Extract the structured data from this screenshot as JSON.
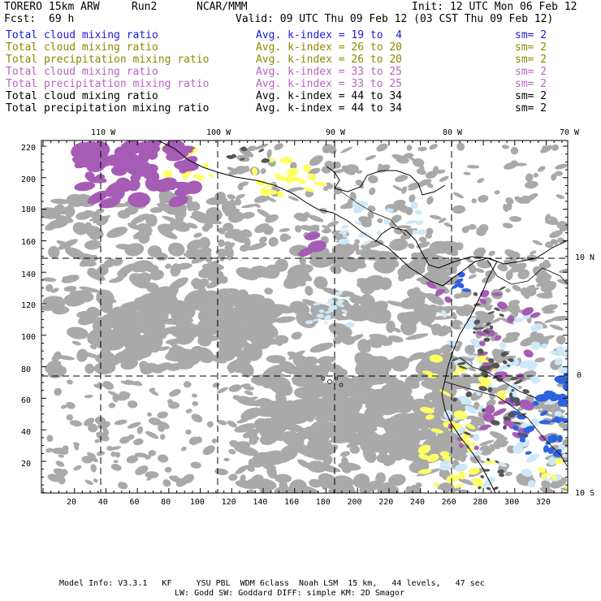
{
  "header": {
    "model": "TORERO",
    "resolution": "15km ARW",
    "run": "Run2",
    "org": "NCAR/MMM",
    "init": "Init: 12 UTC Mon 06 Feb 12",
    "fcst_label": "Fcst:",
    "fcst_value": "69 h",
    "valid": "Valid: 09 UTC Thu 09 Feb 12 (03 CST Thu 09 Feb 12)"
  },
  "legend": [
    {
      "field": "Total cloud mixing ratio",
      "kindex": "Avg. k-index = 19 to  4",
      "sm": "sm= 2",
      "color": "#1a1ad6"
    },
    {
      "field": "Total cloud mixing ratio",
      "kindex": "Avg. k-index = 26 to 20",
      "sm": "sm= 2",
      "color": "#8a8a00"
    },
    {
      "field": "Total precipitation mixing ratio",
      "kindex": "Avg. k-index = 26 to 20",
      "sm": "sm= 2",
      "color": "#8a8a00"
    },
    {
      "field": "Total cloud mixing ratio",
      "kindex": "Avg. k-index = 33 to 25",
      "sm": "sm= 2",
      "color": "#b763c2"
    },
    {
      "field": "Total precipitation mixing ratio",
      "kindex": "Avg. k-index = 33 to 25",
      "sm": "sm= 2",
      "color": "#b763c2"
    },
    {
      "field": "Total cloud mixing ratio",
      "kindex": "Avg. k-index = 44 to 34",
      "sm": "sm= 2",
      "color": "#000000"
    },
    {
      "field": "Total precipitation mixing ratio",
      "kindex": "Avg. k-index = 44 to 34",
      "sm": "sm= 2",
      "color": "#000000"
    }
  ],
  "map": {
    "lon_labels": [
      "110 W",
      "100 W",
      "90 W",
      "80 W",
      "70 W"
    ],
    "lat_labels": [
      "10 N",
      "0",
      "10 S"
    ],
    "y_ticks": [
      "220",
      "200",
      "180",
      "160",
      "140",
      "120",
      "100",
      "80",
      "60",
      "40",
      "20"
    ],
    "x_ticks": [
      "20",
      "40",
      "60",
      "80",
      "100",
      "120",
      "140",
      "160",
      "180",
      "200",
      "220",
      "240",
      "260",
      "280",
      "300",
      "320"
    ],
    "colors": {
      "cloud_gray": "#a9a9a9",
      "dark_gray": "#555555",
      "yellow": "#ffff66",
      "purple": "#a65cb5",
      "light_blue": "#cde8f8",
      "blue": "#2f62e0",
      "coast": "#000000"
    }
  },
  "footer": {
    "line1": "Model Info: V3.3.1   KF     YSU PBL  WDM 6class  Noah LSM  15 km,   44 levels,   47 sec",
    "line2": "LW: Godd SW: Goddard DIFF: simple KM: 2D Smagor"
  }
}
